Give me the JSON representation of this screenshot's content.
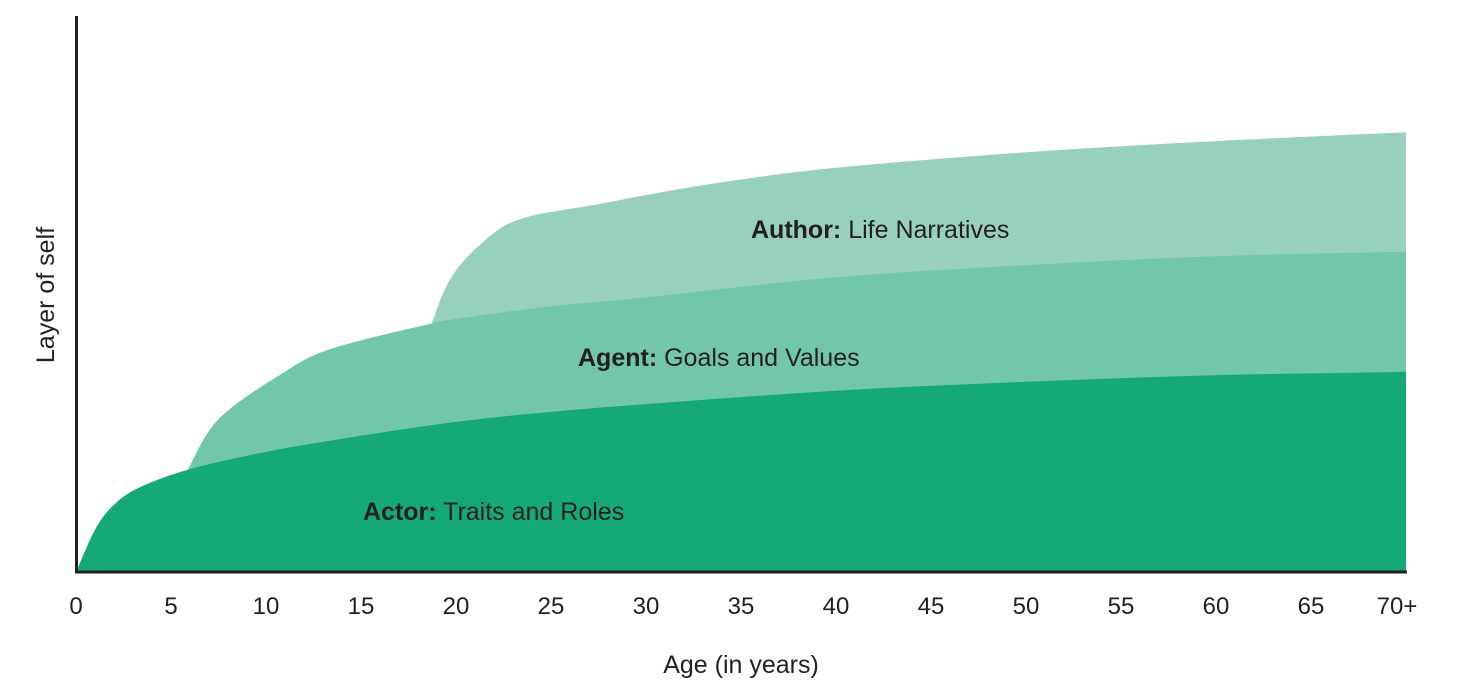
{
  "chart_data": {
    "type": "area",
    "title": "",
    "xlabel": "Age (in years)",
    "ylabel": "Layer of self",
    "x_ticks": [
      "0",
      "5",
      "10",
      "15",
      "20",
      "25",
      "30",
      "35",
      "40",
      "45",
      "50",
      "55",
      "60",
      "65",
      "70+"
    ],
    "xlim": [
      0,
      70
    ],
    "ylim": [
      0,
      100
    ],
    "grid": false,
    "legend": "inline labels",
    "y_scale_note": "relative height, 0 = x-axis, 100 = top of y-axis",
    "series": [
      {
        "name": "Actor",
        "label_bold": "Actor:",
        "label_rest": " Traits and Roles",
        "color": "#15A878",
        "start_age": 0,
        "x": [
          0,
          1,
          2,
          3.4,
          6,
          10,
          15,
          20,
          25,
          30,
          40,
          50,
          60,
          70
        ],
        "y": [
          0,
          7.6,
          12.1,
          15.3,
          18.5,
          21.6,
          24.5,
          27.0,
          28.8,
          30.2,
          32.6,
          34.2,
          35.4,
          36.0
        ]
      },
      {
        "name": "Agent",
        "label_bold": "Agent:",
        "label_rest": " Goals and Values",
        "color": "#72C7A8",
        "start_age": 5.9,
        "x": [
          5.9,
          7.5,
          10.8,
          13.4,
          18.6,
          20,
          25,
          30,
          40,
          50,
          60,
          70
        ],
        "y": [
          18.5,
          27.5,
          35.6,
          40.1,
          44.6,
          45.5,
          47.8,
          49.4,
          53.0,
          55.2,
          56.8,
          57.6
        ]
      },
      {
        "name": "Author",
        "label_bold": "Author:",
        "label_rest": " Life Narratives",
        "color": "#98D1BB",
        "start_age": 18.7,
        "x": [
          18.7,
          19.7,
          21.3,
          23.4,
          27.6,
          30,
          34,
          40,
          50,
          60,
          70
        ],
        "y": [
          44.6,
          52.7,
          59.0,
          63.5,
          66.2,
          67.8,
          70.1,
          72.7,
          75.5,
          77.5,
          79.1
        ]
      }
    ]
  },
  "axes": {
    "x_title": "Age (in years)",
    "y_title": "Layer of self",
    "axis_color": "#231F20"
  },
  "labels": {
    "author_bold": "Author:",
    "author_rest": " Life Narratives",
    "agent_bold": "Agent:",
    "agent_rest": " Goals and Values",
    "actor_bold": "Actor:",
    "actor_rest": " Traits and Roles"
  }
}
